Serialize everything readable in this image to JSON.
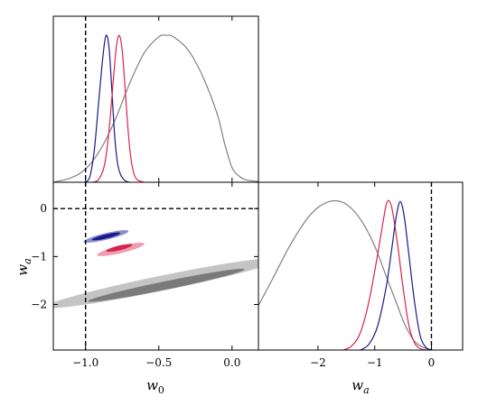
{
  "chart_data": [
    {
      "panel": "w0-marginal",
      "type": "line",
      "xlim": [
        -1.22,
        0.18
      ],
      "ylim": [
        0,
        1.13
      ],
      "reference_x": -1.0,
      "x_ticks": [
        -1.0,
        -0.5,
        0.0
      ],
      "series": [
        {
          "color": "#808080",
          "x": [
            -1.22,
            -1.1,
            -1.0,
            -0.9,
            -0.8,
            -0.7,
            -0.6,
            -0.5,
            -0.45,
            -0.4,
            -0.3,
            -0.2,
            -0.1,
            -0.05,
            0.0,
            0.05,
            0.1,
            0.18
          ],
          "y": [
            0.0,
            0.03,
            0.09,
            0.22,
            0.42,
            0.67,
            0.88,
            0.99,
            1.0,
            0.99,
            0.9,
            0.72,
            0.46,
            0.26,
            0.1,
            0.04,
            0.015,
            0.005
          ]
        },
        {
          "color": "#1a1a8c",
          "x": [
            -1.0,
            -0.97,
            -0.94,
            -0.91,
            -0.88,
            -0.86,
            -0.84,
            -0.82,
            -0.8,
            -0.78,
            -0.76,
            -0.74,
            -0.72,
            -0.7
          ],
          "y": [
            0.0,
            0.04,
            0.22,
            0.55,
            0.87,
            1.0,
            0.92,
            0.62,
            0.3,
            0.12,
            0.05,
            0.02,
            0.005,
            0.0
          ]
        },
        {
          "color": "#d6254d",
          "x": [
            -0.95,
            -0.91,
            -0.87,
            -0.84,
            -0.81,
            -0.79,
            -0.77,
            -0.75,
            -0.73,
            -0.71,
            -0.69,
            -0.67,
            -0.65,
            -0.62,
            -0.6
          ],
          "y": [
            0.0,
            0.02,
            0.12,
            0.35,
            0.7,
            0.92,
            1.0,
            0.9,
            0.64,
            0.36,
            0.16,
            0.06,
            0.02,
            0.005,
            0.0
          ]
        }
      ]
    },
    {
      "panel": "w0-wa-contours",
      "type": "contour",
      "xlim": [
        -1.22,
        0.18
      ],
      "ylim": [
        -2.95,
        0.55
      ],
      "reference_x": -1.0,
      "reference_y": 0.0,
      "x_ticks": [
        -1.0,
        -0.5,
        0.0
      ],
      "y_ticks": [
        0,
        -1,
        -2
      ],
      "x_tick_labels": [
        "−1.0",
        "−0.5",
        "0.0"
      ],
      "y_tick_labels": [
        "0",
        "−1",
        "−2"
      ],
      "xlabel": "w0",
      "ylabel": "wa",
      "regions": [
        {
          "color": "#c4c4c4",
          "level": "outer",
          "center": [
            -0.47,
            -1.55
          ],
          "angle_deg": -32,
          "semi_major": 0.95,
          "semi_minor": 0.09
        },
        {
          "color": "#7a7a7a",
          "level": "inner",
          "center": [
            -0.45,
            -1.6
          ],
          "angle_deg": -32,
          "semi_major": 0.63,
          "semi_minor": 0.05
        },
        {
          "color": "#8c90c8",
          "level": "outer",
          "center": [
            -0.86,
            -0.58
          ],
          "angle_deg": -36,
          "semi_major": 0.19,
          "semi_minor": 0.04
        },
        {
          "color": "#1a1a8c",
          "level": "inner",
          "center": [
            -0.86,
            -0.58
          ],
          "angle_deg": -36,
          "semi_major": 0.12,
          "semi_minor": 0.025
        },
        {
          "color": "#eda0b3",
          "level": "outer",
          "center": [
            -0.76,
            -0.85
          ],
          "angle_deg": -36,
          "semi_major": 0.2,
          "semi_minor": 0.045
        },
        {
          "color": "#d6254d",
          "level": "inner",
          "center": [
            -0.77,
            -0.82
          ],
          "angle_deg": -36,
          "semi_major": 0.11,
          "semi_minor": 0.028
        }
      ]
    },
    {
      "panel": "wa-marginal",
      "type": "line",
      "xlim": [
        -3.05,
        0.55
      ],
      "ylim": [
        0,
        1.13
      ],
      "reference_x": 0.0,
      "x_ticks": [
        -2,
        -1,
        0
      ],
      "x_tick_labels": [
        "−2",
        "−1",
        "0"
      ],
      "xlabel": "wa",
      "series": [
        {
          "color": "#808080",
          "x": [
            -3.05,
            -2.8,
            -2.5,
            -2.2,
            -2.0,
            -1.8,
            -1.6,
            -1.4,
            -1.2,
            -1.0,
            -0.8,
            -0.6,
            -0.5,
            -0.4,
            -0.3,
            -0.2,
            -0.1,
            0.0
          ],
          "y": [
            0.3,
            0.48,
            0.7,
            0.88,
            0.96,
            1.0,
            1.0,
            0.95,
            0.85,
            0.7,
            0.5,
            0.3,
            0.2,
            0.12,
            0.06,
            0.03,
            0.01,
            0.0
          ]
        },
        {
          "color": "#d6254d",
          "x": [
            -1.55,
            -1.4,
            -1.25,
            -1.1,
            -0.95,
            -0.85,
            -0.78,
            -0.7,
            -0.6,
            -0.5,
            -0.4,
            -0.3,
            -0.2,
            -0.1
          ],
          "y": [
            0.0,
            0.03,
            0.12,
            0.33,
            0.64,
            0.87,
            1.0,
            0.96,
            0.72,
            0.42,
            0.17,
            0.05,
            0.01,
            0.0
          ]
        },
        {
          "color": "#1a1a8c",
          "x": [
            -1.25,
            -1.1,
            -0.95,
            -0.8,
            -0.7,
            -0.62,
            -0.55,
            -0.48,
            -0.4,
            -0.3,
            -0.2,
            -0.1,
            0.0
          ],
          "y": [
            0.0,
            0.04,
            0.16,
            0.42,
            0.68,
            0.9,
            1.0,
            0.9,
            0.65,
            0.33,
            0.1,
            0.02,
            0.0
          ]
        }
      ]
    }
  ]
}
